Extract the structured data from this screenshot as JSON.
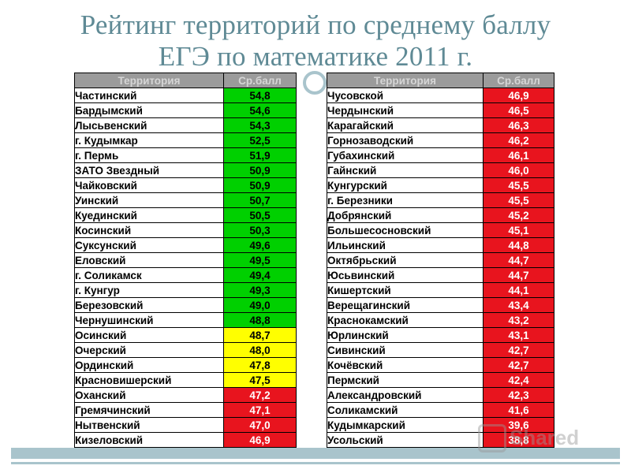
{
  "title": {
    "line1": "Рейтинг территорий по среднему баллу",
    "line2": "ЕГЭ по математике 2011 г."
  },
  "headers": {
    "territory": "Территория",
    "score": "Ср.балл"
  },
  "colors": {
    "green": "#00d000",
    "yellow": "#ffff00",
    "red": "#e8141e",
    "header": "#9b9b9b"
  },
  "left_table": [
    {
      "name": "Частинский",
      "score": "54,8",
      "color": "green"
    },
    {
      "name": "Бардымский",
      "score": "54,6",
      "color": "green"
    },
    {
      "name": "Лысьвенский",
      "score": "54,3",
      "color": "green"
    },
    {
      "name": "г. Кудымкар",
      "score": "52,5",
      "color": "green"
    },
    {
      "name": "г. Пермь",
      "score": "51,9",
      "color": "green"
    },
    {
      "name": "ЗАТО Звездный",
      "score": "50,9",
      "color": "green"
    },
    {
      "name": "Чайковский",
      "score": "50,9",
      "color": "green"
    },
    {
      "name": "Уинский",
      "score": "50,7",
      "color": "green"
    },
    {
      "name": "Куединский",
      "score": "50,5",
      "color": "green"
    },
    {
      "name": "Косинский",
      "score": "50,3",
      "color": "green"
    },
    {
      "name": "Суксунский",
      "score": "49,6",
      "color": "green"
    },
    {
      "name": "Еловский",
      "score": "49,5",
      "color": "green"
    },
    {
      "name": "г. Соликамск",
      "score": "49,4",
      "color": "green"
    },
    {
      "name": "г. Кунгур",
      "score": "49,3",
      "color": "green"
    },
    {
      "name": "Березовский",
      "score": "49,0",
      "color": "green"
    },
    {
      "name": "Чернушинский",
      "score": "48,8",
      "color": "green"
    },
    {
      "name": "Осинский",
      "score": "48,7",
      "color": "yellow"
    },
    {
      "name": "Очерский",
      "score": "48,0",
      "color": "yellow"
    },
    {
      "name": "Ординский",
      "score": "47,8",
      "color": "yellow"
    },
    {
      "name": "Красновишерский",
      "score": "47,5",
      "color": "yellow"
    },
    {
      "name": "Оханский",
      "score": "47,2",
      "color": "red"
    },
    {
      "name": "Гремячинский",
      "score": "47,1",
      "color": "red"
    },
    {
      "name": "Нытвенский",
      "score": "47,0",
      "color": "red"
    },
    {
      "name": "Кизеловский",
      "score": "46,9",
      "color": "red"
    }
  ],
  "right_table": [
    {
      "name": "Чусовской",
      "score": "46,9",
      "color": "red"
    },
    {
      "name": "Чердынский",
      "score": "46,5",
      "color": "red"
    },
    {
      "name": "Карагайский",
      "score": "46,3",
      "color": "red"
    },
    {
      "name": "Горнозаводский",
      "score": "46,2",
      "color": "red"
    },
    {
      "name": "Губахинский",
      "score": "46,1",
      "color": "red"
    },
    {
      "name": "Гайнский",
      "score": "46,0",
      "color": "red"
    },
    {
      "name": "Кунгурский",
      "score": "45,5",
      "color": "red"
    },
    {
      "name": "г. Березники",
      "score": "45,5",
      "color": "red"
    },
    {
      "name": "Добрянский",
      "score": "45,2",
      "color": "red"
    },
    {
      "name": "Большесосновский",
      "score": "45,1",
      "color": "red"
    },
    {
      "name": "Ильинский",
      "score": "44,8",
      "color": "red"
    },
    {
      "name": "Октябрьский",
      "score": "44,7",
      "color": "red"
    },
    {
      "name": "Юсьвинский",
      "score": "44,7",
      "color": "red"
    },
    {
      "name": "Кишертский",
      "score": "44,1",
      "color": "red"
    },
    {
      "name": "Верещагинский",
      "score": "43,4",
      "color": "red"
    },
    {
      "name": "Краснокамский",
      "score": "43,2",
      "color": "red"
    },
    {
      "name": "Юрлинский",
      "score": "43,1",
      "color": "red"
    },
    {
      "name": "Сивинский",
      "score": "42,7",
      "color": "red"
    },
    {
      "name": "Кочёвский",
      "score": "42,7",
      "color": "red"
    },
    {
      "name": "Пермский",
      "score": "42,4",
      "color": "red"
    },
    {
      "name": "Александровский",
      "score": "42,3",
      "color": "red"
    },
    {
      "name": "Соликамский",
      "score": "41,6",
      "color": "red"
    },
    {
      "name": "Кудымкарский",
      "score": "39,6",
      "color": "red"
    },
    {
      "name": "Усольский",
      "score": "38,8",
      "color": "red"
    }
  ],
  "watermark": {
    "text": "Shared",
    "icon": "presentation-icon"
  }
}
